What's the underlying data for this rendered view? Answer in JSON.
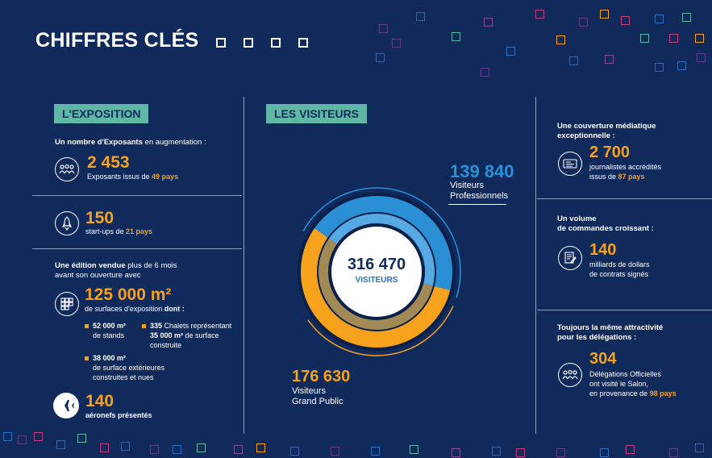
{
  "header": {
    "title": "CHIFFRES CLÉS"
  },
  "colors": {
    "background": "#102a5c",
    "accent_orange": "#f6a21c",
    "label_teal": "#5fb8a6",
    "ring_blue": "#2b8fd6",
    "ring_khaki": "#a18a55"
  },
  "exposition": {
    "label": "L'EXPOSITION",
    "exhibitors": {
      "intro_bold": "Un nombre d'Exposants",
      "intro_rest": " en augmentation :",
      "value": "2 453",
      "desc_prefix": "Exposants issus de ",
      "desc_highlight": "49 pays",
      "icon": "people-group-icon"
    },
    "startups": {
      "value": "150",
      "desc_prefix": "start-ups de ",
      "desc_highlight": "21 pays",
      "icon": "rocket-icon"
    },
    "surface": {
      "intro_bold": "Une édition vendue",
      "intro_rest": " plus de 6 mois",
      "intro_line2": "avant son ouverture avec",
      "value": "125 000 m²",
      "desc_prefix": "de surfaces d'exposition ",
      "desc_highlight": "dont :",
      "icon": "grid-squares-icon",
      "details": [
        {
          "bold": "52 000 m²",
          "rest": "de stands"
        },
        {
          "bold": "335",
          "rest_inline": " Chalets représentant",
          "bold2": "35 000 m²",
          "rest2": " de surface",
          "rest3": "construite"
        },
        {
          "bold": "38 000 m²",
          "rest": "de surface extérieures",
          "rest_line2": "construites et nues"
        }
      ]
    },
    "aircraft": {
      "value": "140",
      "desc": "aéronefs présentés",
      "icon": "airplane-icon"
    }
  },
  "visiteurs": {
    "label": "LES VISITEURS",
    "total_value": "316 470",
    "total_label": "VISITEURS",
    "professionals": {
      "value": "139 840",
      "line1": "Visiteurs",
      "line2": "Professionnels"
    },
    "public": {
      "value": "176 630",
      "line1": "Visiteurs",
      "line2": "Grand Public"
    }
  },
  "chart_data": {
    "type": "pie",
    "categories": [
      "Visiteurs Professionnels",
      "Visiteurs Grand Public"
    ],
    "values": [
      139840,
      176630
    ],
    "total": 316470
  },
  "media": {
    "coverage": {
      "intro_line1": "Une couverture médiatique",
      "intro_line2": "exceptionnelle :",
      "value": "2 700",
      "desc_line1": "journalistes accrédités",
      "desc_prefix": "issus de ",
      "desc_highlight": "87 pays",
      "icon": "id-card-icon"
    },
    "orders": {
      "intro_line1": "Un volume",
      "intro_line2": "de commandes croissant :",
      "value": "140",
      "desc_line1": "milliards de dollars",
      "desc_line2": "de contrats signés",
      "icon": "contract-icon"
    },
    "delegations": {
      "intro_line1": "Toujours la même attractivité",
      "intro_line2": "pour les délégations :",
      "value": "304",
      "desc_line1": "Délégations Officielles",
      "desc_line2": "ont visité le Salon,",
      "desc_prefix": "en provenance de ",
      "desc_highlight": "98 pays",
      "icon": "delegation-group-icon"
    }
  }
}
